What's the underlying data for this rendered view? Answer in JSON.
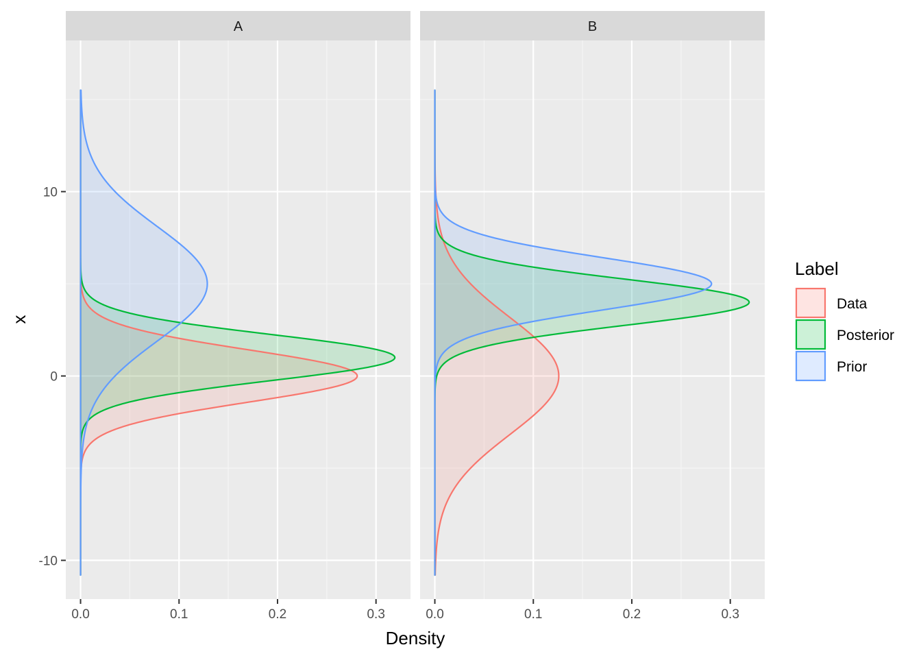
{
  "chart_data": {
    "type": "area",
    "subtype": "density (orientation: flipped, density on x-axis, x on y-axis)",
    "facets": [
      "A",
      "B"
    ],
    "xlabel": "Density",
    "ylabel": "x",
    "xlim": [
      -0.015,
      0.335
    ],
    "ylim": [
      -12.1,
      18.2
    ],
    "xticks": [
      0.0,
      0.1,
      0.2,
      0.3
    ],
    "xtick_labels": [
      "0.0",
      "0.1",
      "0.2",
      "0.3"
    ],
    "yticks": [
      -10,
      0,
      10
    ],
    "ytick_labels": [
      "-10",
      "0",
      "10"
    ],
    "grid": true,
    "legend": {
      "title": "Label",
      "position": "right",
      "entries": [
        {
          "name": "Data",
          "color": "#F8766D"
        },
        {
          "name": "Posterior",
          "color": "#00BA38"
        },
        {
          "name": "Prior",
          "color": "#619CFF"
        }
      ]
    },
    "series_range": [
      -10.8,
      15.5
    ],
    "panels": [
      {
        "facet": "A",
        "series": [
          {
            "name": "Data",
            "color": "#F8766D",
            "distribution": "normal",
            "mean": 0.0,
            "sd": 1.42,
            "peak_density": 0.28
          },
          {
            "name": "Posterior",
            "color": "#00BA38",
            "distribution": "normal",
            "mean": 1.0,
            "sd": 1.25,
            "peak_density": 0.32
          },
          {
            "name": "Prior",
            "color": "#619CFF",
            "distribution": "normal",
            "mean": 5.0,
            "sd": 3.1,
            "peak_density": 0.128
          }
        ]
      },
      {
        "facet": "B",
        "series": [
          {
            "name": "Data",
            "color": "#F8766D",
            "distribution": "normal",
            "mean": 0.0,
            "sd": 3.17,
            "peak_density": 0.126
          },
          {
            "name": "Posterior",
            "color": "#00BA38",
            "distribution": "normal",
            "mean": 4.0,
            "sd": 1.25,
            "peak_density": 0.32
          },
          {
            "name": "Prior",
            "color": "#619CFF",
            "distribution": "normal",
            "mean": 5.0,
            "sd": 1.42,
            "peak_density": 0.28
          }
        ]
      }
    ]
  }
}
